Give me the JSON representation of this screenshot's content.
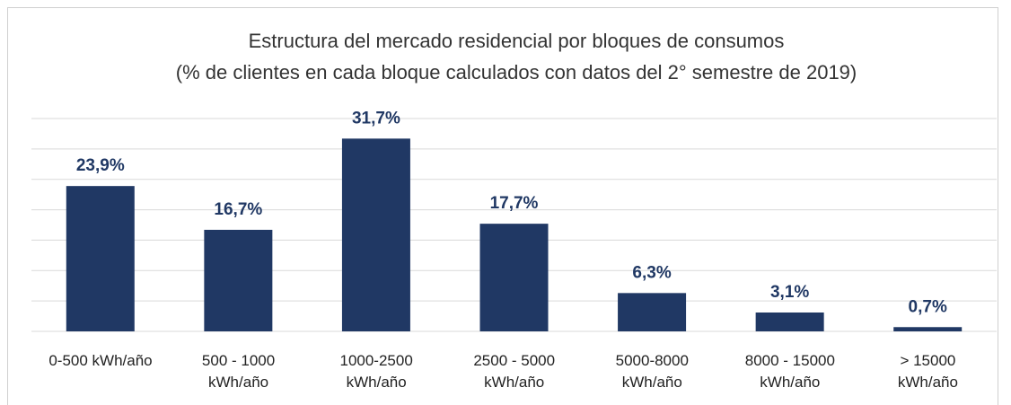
{
  "chart_data": {
    "type": "bar",
    "title": "Estructura del mercado residencial por bloques de consumos",
    "subtitle": "(% de clientes en cada bloque calculados con datos del 2° semestre de 2019)",
    "categories": [
      "0-500 kWh/año",
      "500 - 1000\nkWh/año",
      "1000-2500\nkWh/año",
      "2500 - 5000\nkWh/año",
      "5000-8000\nkWh/año",
      "8000 - 15000\nkWh/año",
      "> 15000\nkWh/año"
    ],
    "values": [
      23.9,
      16.7,
      31.7,
      17.7,
      6.3,
      3.1,
      0.7
    ],
    "value_labels": [
      "23,9%",
      "16,7%",
      "31,7%",
      "17,7%",
      "6,3%",
      "3,1%",
      "0,7%"
    ],
    "color": "#203864",
    "ylim": [
      0,
      35
    ],
    "yticks": [
      0,
      5,
      10,
      15,
      20,
      25,
      30,
      35
    ],
    "grid": true
  }
}
